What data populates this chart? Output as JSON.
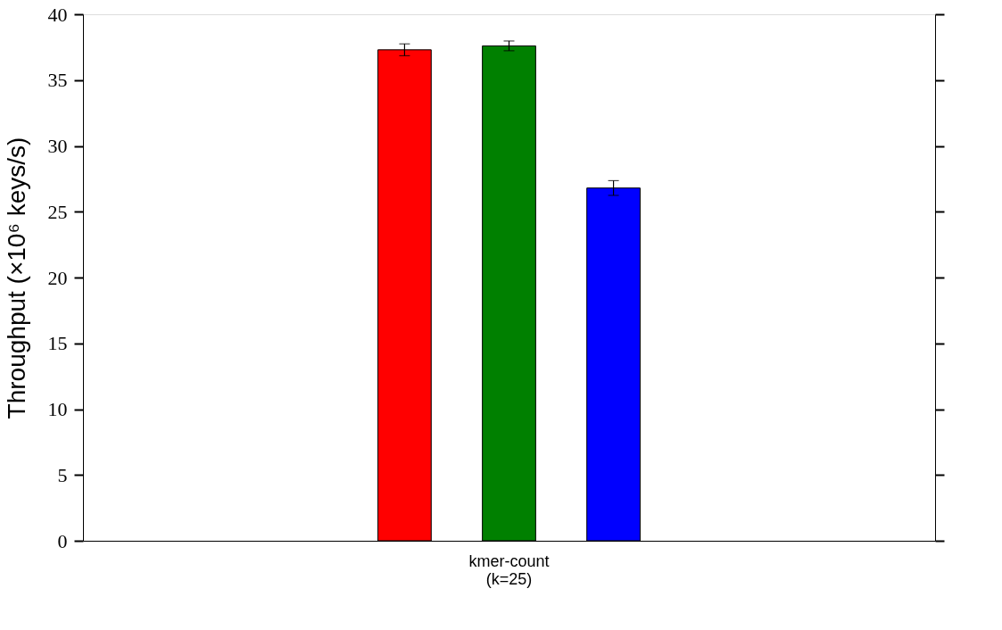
{
  "chart_data": {
    "type": "bar",
    "ylabel": "Throughput (×10⁶ keys/s)",
    "categories": [
      "kmer-count\n(k=25)"
    ],
    "series": [
      {
        "color": "#ff0000",
        "values": [
          37.3
        ],
        "errors": [
          0.45
        ]
      },
      {
        "color": "#008000",
        "values": [
          37.6
        ],
        "errors": [
          0.37
        ]
      },
      {
        "color": "#0000ff",
        "values": [
          26.8
        ],
        "errors": [
          0.56
        ]
      }
    ],
    "ylim": [
      0,
      40
    ],
    "yticks": [
      0,
      5,
      10,
      15,
      20,
      25,
      30,
      35,
      40
    ],
    "grid": false,
    "legend": false
  }
}
